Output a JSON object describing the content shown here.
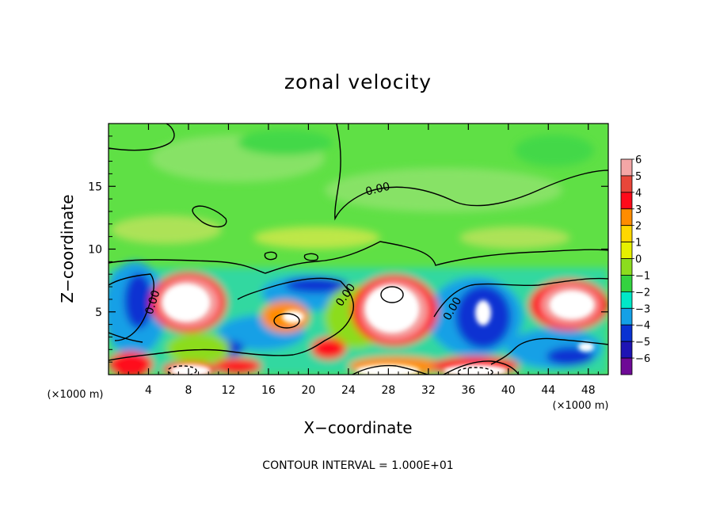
{
  "chart_data": {
    "type": "heatmap",
    "title": "zonal velocity",
    "xlabel": "X−coordinate",
    "ylabel": "Z−coordinate",
    "x_scale_note": "(×1000 m)",
    "x_scale_note_right": "(×1000 m)",
    "xlim": [
      0,
      50
    ],
    "ylim": [
      0,
      20
    ],
    "x_ticks": [
      4,
      8,
      12,
      16,
      20,
      24,
      28,
      32,
      36,
      40,
      44,
      48
    ],
    "x_tick_labels": [
      "4",
      "8",
      "12",
      "16",
      "20",
      "24",
      "28",
      "32",
      "36",
      "40",
      "44",
      "48"
    ],
    "y_ticks": [
      5,
      10,
      15
    ],
    "y_tick_labels": [
      "5",
      "10",
      "15"
    ],
    "colorbar": {
      "levels": [
        6,
        5,
        4,
        3,
        2,
        1,
        0,
        -1,
        -2,
        -3,
        -4,
        -5,
        -6
      ],
      "labels": [
        "6",
        "5",
        "4",
        "3",
        "2",
        "1",
        "0",
        "−1",
        "−2",
        "−3",
        "−4",
        "−5",
        "−6"
      ],
      "colors": [
        "#f4a6a6",
        "#e8463a",
        "#ff0a1a",
        "#ff8c00",
        "#ffd700",
        "#e6f000",
        "#8cdc1e",
        "#33d240",
        "#00e8c8",
        "#14a0e6",
        "#0a32d2",
        "#1e14b4",
        "#6e0a96"
      ]
    },
    "contour_labels": [
      "0.00",
      "0.00",
      "0.00",
      "0.00",
      "0.00"
    ],
    "footer": "CONTOUR INTERVAL = 1.000E+01",
    "colors": {
      "upper_field": "#5fe045",
      "upper_field_light": "#8ce36a",
      "contour_line": "#000000"
    }
  }
}
